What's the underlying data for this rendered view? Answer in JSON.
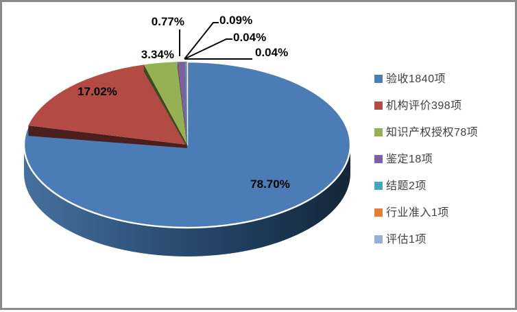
{
  "window": {
    "background": "#ffffff",
    "border_color": "#8a8a8a"
  },
  "chart_data": {
    "type": "pie",
    "style": "pie-3d",
    "title": "",
    "legend_position": "right",
    "grid": false,
    "categories": [
      "验收1840项",
      "机构评价398项",
      "知识产权授权78项",
      "鉴定18项",
      "结题2项",
      "行业准入1项",
      "评估1项"
    ],
    "values": [
      1840,
      398,
      78,
      18,
      2,
      1,
      1
    ],
    "percent_labels": [
      "78.70%",
      "17.02%",
      "3.34%",
      "0.77%",
      "0.09%",
      "0.04%",
      "0.04%"
    ],
    "colors": [
      "#4C7CB5",
      "#B34A44",
      "#96B054",
      "#7B619E",
      "#46A6C0",
      "#E08137",
      "#95AFD7"
    ],
    "rim_gradient": [
      "#46719E",
      "#2E5078",
      "#1D3A58",
      "#142538"
    ],
    "label_color": "#000000",
    "leader_line_color": "#000000"
  }
}
